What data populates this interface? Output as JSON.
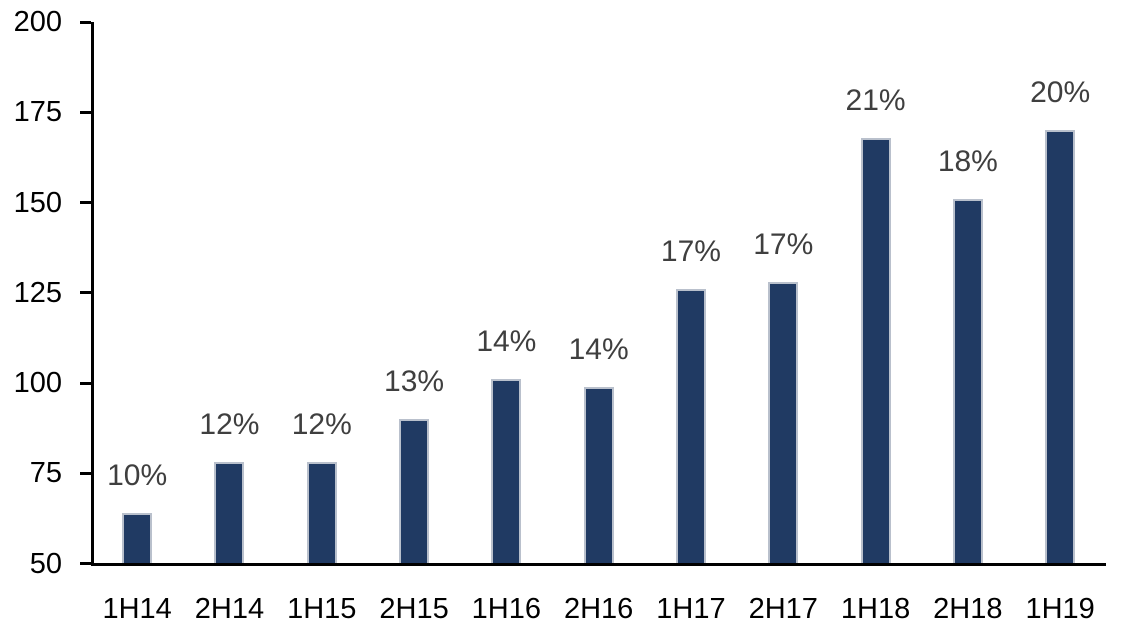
{
  "chart_data": {
    "type": "bar",
    "title": "",
    "xlabel": "",
    "ylabel": "",
    "categories": [
      "1H14",
      "2H14",
      "1H15",
      "2H15",
      "1H16",
      "2H16",
      "1H17",
      "2H17",
      "1H18",
      "2H18",
      "1H19"
    ],
    "values": [
      64,
      78,
      78,
      90,
      101,
      99,
      126,
      128,
      168,
      151,
      170
    ],
    "point_labels": [
      "10%",
      "12%",
      "12%",
      "13%",
      "14%",
      "14%",
      "17%",
      "17%",
      "21%",
      "18%",
      "20%"
    ],
    "ylim": [
      50,
      200
    ],
    "yticks": [
      50,
      75,
      100,
      125,
      150,
      175,
      200
    ],
    "grid": "off",
    "legend": "none",
    "colors": {
      "bar_fill": "#203a63",
      "bar_border": "#b9c0cc",
      "value_label": "#3f3f3f",
      "axis": "#000000",
      "tick_label": "#000000",
      "background": "#ffffff"
    }
  }
}
